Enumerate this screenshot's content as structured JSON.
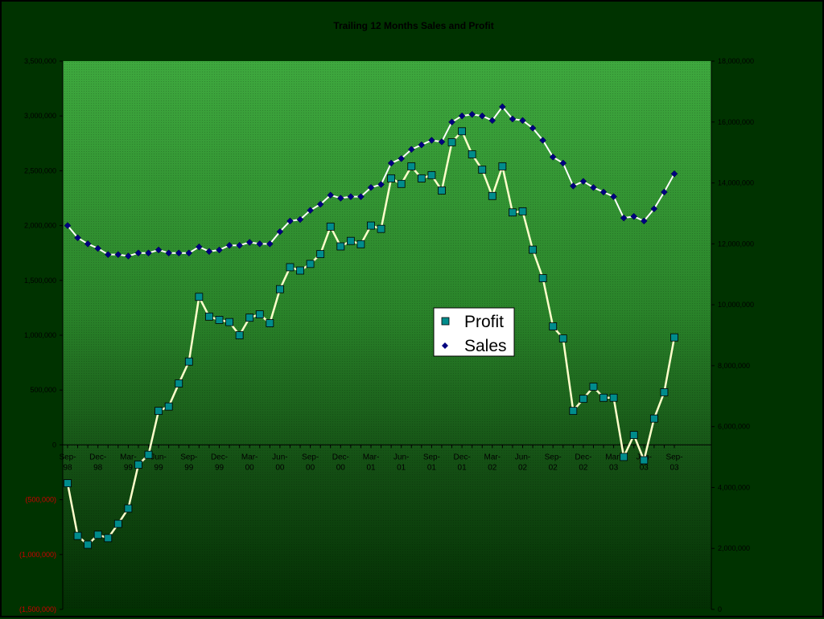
{
  "chart_data": {
    "type": "line",
    "title": "Trailing 12 Months Sales and Profit",
    "xlabel": "",
    "ylabel": "",
    "x_tick_labels": [
      "Sep-98",
      "Dec-98",
      "Mar-99",
      "Jun-99",
      "Sep-99",
      "Dec-99",
      "Mar-00",
      "Jun-00",
      "Sep-00",
      "Dec-00",
      "Mar-01",
      "Jun-01",
      "Sep-01",
      "Dec-01",
      "Mar-02",
      "Jun-02",
      "Sep-02",
      "Dec-02",
      "Mar-03",
      "Jun-03",
      "Sep-03"
    ],
    "y_left": {
      "ylim": [
        -1500000,
        3500000
      ],
      "ticks": [
        3500000,
        3000000,
        2500000,
        2000000,
        1500000,
        1000000,
        500000,
        0,
        -500000,
        -1000000,
        -1500000
      ],
      "tick_labels": [
        "3,500,000",
        "3,000,000",
        "2,500,000",
        "2,000,000",
        "1,500,000",
        "1,000,000",
        "500,000",
        "0",
        "(500,000)",
        "(1,000,000)",
        "(1,500,000)"
      ]
    },
    "y_right": {
      "ylim": [
        0,
        18000000
      ],
      "ticks": [
        18000000,
        16000000,
        14000000,
        12000000,
        10000000,
        8000000,
        6000000,
        4000000,
        2000000,
        0
      ],
      "tick_labels": [
        "18,000,000",
        "16,000,000",
        "14,000,000",
        "12,000,000",
        "10,000,000",
        "8,000,000",
        "6,000,000",
        "4,000,000",
        "2,000,000",
        "0"
      ]
    },
    "series": [
      {
        "name": "Profit",
        "axis": "left",
        "values": [
          -350000,
          -830000,
          -910000,
          -820000,
          -850000,
          -720000,
          -580000,
          -180000,
          -90000,
          310000,
          350000,
          560000,
          760000,
          1350000,
          1170000,
          1140000,
          1120000,
          1000000,
          1160000,
          1190000,
          1110000,
          1420000,
          1620000,
          1590000,
          1650000,
          1740000,
          1990000,
          1810000,
          1860000,
          1830000,
          2000000,
          1970000,
          2430000,
          2380000,
          2540000,
          2430000,
          2460000,
          2320000,
          2760000,
          2860000,
          2650000,
          2510000,
          2270000,
          2540000,
          2120000,
          2130000,
          1780000,
          1520000,
          1080000,
          970000,
          310000,
          420000,
          530000,
          430000,
          430000,
          -110000,
          90000,
          -140000,
          240000,
          480000,
          980000
        ]
      },
      {
        "name": "Sales",
        "axis": "right",
        "values": [
          12600000,
          12200000,
          12000000,
          11850000,
          11650000,
          11650000,
          11600000,
          11700000,
          11700000,
          11800000,
          11700000,
          11700000,
          11700000,
          11900000,
          11750000,
          11800000,
          11950000,
          11950000,
          12050000,
          12000000,
          12000000,
          12400000,
          12750000,
          12800000,
          13100000,
          13300000,
          13600000,
          13500000,
          13550000,
          13550000,
          13850000,
          13950000,
          14650000,
          14800000,
          15100000,
          15250000,
          15400000,
          15350000,
          16000000,
          16200000,
          16250000,
          16200000,
          16050000,
          16500000,
          16100000,
          16050000,
          15800000,
          15400000,
          14850000,
          14650000,
          13900000,
          14050000,
          13850000,
          13700000,
          13550000,
          12850000,
          12900000,
          12750000,
          13150000,
          13700000,
          14300000
        ]
      }
    ],
    "legend": {
      "position": "center-right",
      "entries": [
        "Profit",
        "Sales"
      ]
    },
    "colors": {
      "background": "#003300",
      "plot_top": "#3a9a3a",
      "plot_bottom": "#003300",
      "profit_line": "#ffffcc",
      "profit_marker": "#008c8c",
      "sales_line": "#ffffff",
      "sales_marker": "#000080"
    },
    "grid": false
  }
}
